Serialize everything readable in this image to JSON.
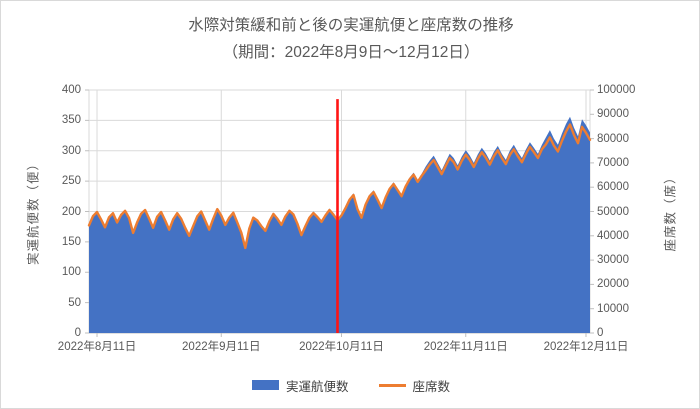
{
  "title": {
    "line1": "水際対策緩和前と後の実運航便と座席数の推移",
    "line2": "（期間：2022年8月9日～12月12日）"
  },
  "chart_data": {
    "type": "area",
    "x_unit": "day",
    "start_date": "2022年8月9日",
    "end_date": "2022年12月12日",
    "x_tick_labels": [
      "2022年8月11日",
      "2022年9月11日",
      "2022年10月11日",
      "2022年11月11日",
      "2022年12月11日"
    ],
    "x_tick_day_indices": [
      2,
      33,
      63,
      94,
      124
    ],
    "grid": true,
    "legend_position": "bottom",
    "left_axis": {
      "title": "実運航便数（便）",
      "min": 0,
      "max": 400,
      "tick_step": 50,
      "ticks": [
        0,
        50,
        100,
        150,
        200,
        250,
        300,
        350,
        400
      ]
    },
    "right_axis": {
      "title": "座席数（席）",
      "min": 0,
      "max": 100000,
      "tick_step": 10000,
      "ticks": [
        0,
        10000,
        20000,
        30000,
        40000,
        50000,
        60000,
        70000,
        80000,
        90000,
        100000
      ]
    },
    "series": [
      {
        "name": "実運航便数",
        "type": "area",
        "axis": "left",
        "color": "#4472C4",
        "values": [
          175,
          190,
          197,
          185,
          172,
          188,
          195,
          180,
          192,
          199,
          187,
          163,
          180,
          194,
          200,
          186,
          171,
          189,
          197,
          183,
          168,
          185,
          195,
          188,
          173,
          160,
          176,
          192,
          200,
          185,
          170,
          188,
          204,
          193,
          178,
          190,
          198,
          182,
          165,
          140,
          172,
          190,
          185,
          176,
          168,
          184,
          196,
          188,
          178,
          192,
          201,
          195,
          180,
          163,
          178,
          192,
          200,
          193,
          185,
          196,
          205,
          197,
          188,
          196,
          208,
          222,
          230,
          206,
          192,
          214,
          228,
          235,
          222,
          208,
          226,
          240,
          248,
          238,
          228,
          244,
          256,
          264,
          252,
          262,
          274,
          284,
          292,
          280,
          268,
          282,
          295,
          288,
          276,
          290,
          301,
          292,
          280,
          294,
          305,
          296,
          284,
          298,
          308,
          295,
          285,
          300,
          310,
          298,
          288,
          302,
          314,
          305,
          295,
          310,
          322,
          334,
          320,
          310,
          328,
          344,
          356,
          338,
          324,
          352,
          342,
          330
        ]
      },
      {
        "name": "座席数",
        "type": "line",
        "axis": "right",
        "color": "#ED7D31",
        "values": [
          44300,
          48100,
          49800,
          46800,
          43500,
          47600,
          49300,
          45500,
          48600,
          50300,
          47300,
          41200,
          45500,
          49100,
          50600,
          47100,
          43300,
          47800,
          49800,
          46300,
          42500,
          46800,
          49300,
          47000,
          43300,
          40000,
          44000,
          48000,
          50000,
          46300,
          42500,
          47000,
          51000,
          48300,
          44500,
          47500,
          49500,
          45500,
          41300,
          35000,
          43000,
          47500,
          46300,
          44000,
          42000,
          46000,
          49000,
          47000,
          44500,
          48000,
          50300,
          48800,
          45000,
          40300,
          44000,
          47400,
          49400,
          47700,
          45700,
          48400,
          50600,
          48700,
          46400,
          48400,
          51400,
          54800,
          56800,
          50900,
          47400,
          52900,
          56300,
          58000,
          54800,
          51400,
          55800,
          59300,
          61300,
          58800,
          56300,
          60300,
          63200,
          65200,
          62200,
          64700,
          66900,
          69300,
          71200,
          68300,
          65400,
          68800,
          72000,
          70300,
          67300,
          70800,
          73400,
          71200,
          68300,
          71700,
          74400,
          72200,
          69300,
          72700,
          75200,
          72000,
          69500,
          73200,
          75600,
          72700,
          70300,
          73700,
          76600,
          74400,
          72000,
          75600,
          77600,
          80500,
          77100,
          74700,
          79000,
          82900,
          85800,
          81500,
          78100,
          84800,
          82400,
          79500
        ]
      }
    ],
    "marker_line": {
      "color": "#FF1414",
      "day_index": 62,
      "top_value_left_axis": 385
    }
  },
  "colors": {
    "background": "#FFFFFF",
    "gridline": "#DADADA",
    "axis_line": "#BFBFBF",
    "text": "#595959",
    "area_blue": "#4472C4",
    "line_orange": "#ED7D31",
    "marker_red": "#FF1414"
  }
}
